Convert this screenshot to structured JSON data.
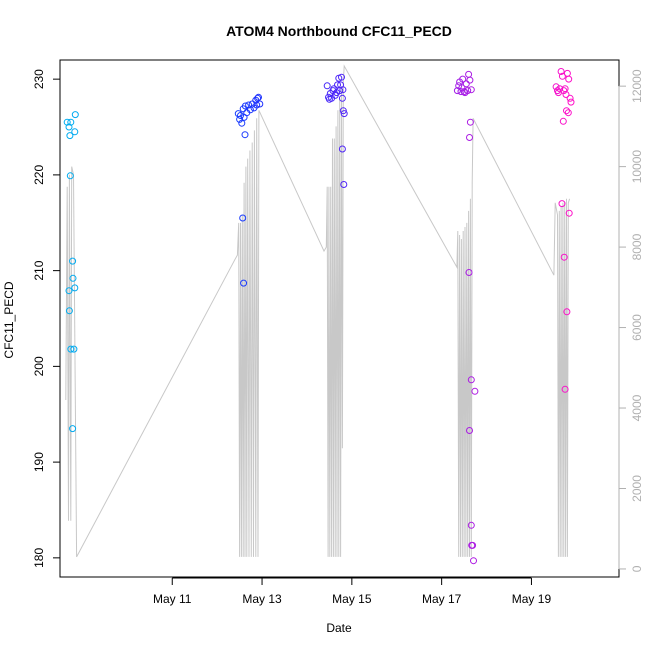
{
  "chart_data": {
    "type": "scatter",
    "title": "ATOM4 Northbound CFC11_PECD",
    "xlabel": "Date",
    "ylabel": "CFC11_PECD",
    "y2label": "",
    "x_unit": "day of May (decimal)",
    "xlim": [
      8.5,
      20.95
    ],
    "ylim": [
      178,
      232
    ],
    "y2lim": [
      -200,
      12650
    ],
    "x_ticks": [
      {
        "value": 11,
        "label": "May 11"
      },
      {
        "value": 13,
        "label": "May 13"
      },
      {
        "value": 15,
        "label": "May 15"
      },
      {
        "value": 17,
        "label": "May 17"
      },
      {
        "value": 19,
        "label": "May 19"
      }
    ],
    "y_ticks": [
      180,
      190,
      200,
      210,
      220,
      230
    ],
    "y2_ticks": [
      0,
      2000,
      4000,
      6000,
      8000,
      10000,
      12000
    ],
    "grid": false,
    "legend": "none",
    "colors": {
      "axis": "#000000",
      "secondary_axis": "#b0b0b0",
      "altitude_line": "#c8c8c8",
      "gradient_start": "#00aef0",
      "gradient_mid": "#1f2bff",
      "gradient_purple": "#8a22ef",
      "gradient_end": "#ff10c8"
    },
    "series": [
      {
        "axis": "left",
        "style": "open-circle",
        "points": [
          [
            8.66,
            225.5
          ],
          [
            8.7,
            225.0
          ],
          [
            8.72,
            224.1
          ],
          [
            8.74,
            225.5
          ],
          [
            8.83,
            224.5
          ],
          [
            8.84,
            226.3
          ],
          [
            8.73,
            219.9
          ],
          [
            8.78,
            211.0
          ],
          [
            8.79,
            209.2
          ],
          [
            8.7,
            207.9
          ],
          [
            8.83,
            208.2
          ],
          [
            8.71,
            205.8
          ],
          [
            8.74,
            201.8
          ],
          [
            8.81,
            201.8
          ],
          [
            8.78,
            193.5
          ],
          [
            12.47,
            226.4
          ],
          [
            12.5,
            225.8
          ],
          [
            12.52,
            226.2
          ],
          [
            12.55,
            225.4
          ],
          [
            12.58,
            226.9
          ],
          [
            12.6,
            226.0
          ],
          [
            12.63,
            227.2
          ],
          [
            12.66,
            226.5
          ],
          [
            12.7,
            227.3
          ],
          [
            12.74,
            226.8
          ],
          [
            12.78,
            227.4
          ],
          [
            12.82,
            227.0
          ],
          [
            12.86,
            227.8
          ],
          [
            12.88,
            227.3
          ],
          [
            12.9,
            228.0
          ],
          [
            12.92,
            228.1
          ],
          [
            12.95,
            227.4
          ],
          [
            12.62,
            224.2
          ],
          [
            12.57,
            215.5
          ],
          [
            12.59,
            208.7
          ],
          [
            14.45,
            229.3
          ],
          [
            14.48,
            228.1
          ],
          [
            14.5,
            227.9
          ],
          [
            14.52,
            228.5
          ],
          [
            14.55,
            228.0
          ],
          [
            14.58,
            228.8
          ],
          [
            14.6,
            229.0
          ],
          [
            14.63,
            228.3
          ],
          [
            14.66,
            228.6
          ],
          [
            14.68,
            229.4
          ],
          [
            14.71,
            230.1
          ],
          [
            14.73,
            228.8
          ],
          [
            14.75,
            229.4
          ],
          [
            14.77,
            230.2
          ],
          [
            14.79,
            228.0
          ],
          [
            14.8,
            228.9
          ],
          [
            14.81,
            226.7
          ],
          [
            14.83,
            226.4
          ],
          [
            14.79,
            222.7
          ],
          [
            14.82,
            219.0
          ],
          [
            17.35,
            228.8
          ],
          [
            17.38,
            229.3
          ],
          [
            17.4,
            229.7
          ],
          [
            17.43,
            228.7
          ],
          [
            17.45,
            229.1
          ],
          [
            17.47,
            230.0
          ],
          [
            17.5,
            228.7
          ],
          [
            17.52,
            228.6
          ],
          [
            17.55,
            229.5
          ],
          [
            17.58,
            228.8
          ],
          [
            17.6,
            230.5
          ],
          [
            17.63,
            229.9
          ],
          [
            17.66,
            228.9
          ],
          [
            17.64,
            225.5
          ],
          [
            17.62,
            223.9
          ],
          [
            17.61,
            209.8
          ],
          [
            17.66,
            198.6
          ],
          [
            17.74,
            197.4
          ],
          [
            17.62,
            193.3
          ],
          [
            17.66,
            183.4
          ],
          [
            17.67,
            181.3
          ],
          [
            17.69,
            181.3
          ],
          [
            17.71,
            179.7
          ],
          [
            19.55,
            229.2
          ],
          [
            19.58,
            228.8
          ],
          [
            19.6,
            228.6
          ],
          [
            19.63,
            229.0
          ],
          [
            19.66,
            230.8
          ],
          [
            19.69,
            230.3
          ],
          [
            19.72,
            228.8
          ],
          [
            19.75,
            229.0
          ],
          [
            19.77,
            228.4
          ],
          [
            19.8,
            230.6
          ],
          [
            19.83,
            230.0
          ],
          [
            19.86,
            228.0
          ],
          [
            19.88,
            227.6
          ],
          [
            19.78,
            226.7
          ],
          [
            19.82,
            226.5
          ],
          [
            19.71,
            225.6
          ],
          [
            19.68,
            217.0
          ],
          [
            19.84,
            216.0
          ],
          [
            19.73,
            211.4
          ],
          [
            19.79,
            205.7
          ],
          [
            19.75,
            197.6
          ]
        ]
      },
      {
        "axis": "right",
        "style": "line",
        "points": [
          [
            8.63,
            4200
          ],
          [
            8.66,
            9500
          ],
          [
            8.69,
            1200
          ],
          [
            8.71,
            9800
          ],
          [
            8.74,
            1200
          ],
          [
            8.76,
            10000
          ],
          [
            8.8,
            9800
          ],
          [
            8.87,
            300
          ],
          [
            12.4,
            7700
          ],
          [
            12.45,
            7800
          ],
          [
            12.48,
            8600
          ],
          [
            12.5,
            300
          ],
          [
            12.52,
            8600
          ],
          [
            12.54,
            300
          ],
          [
            12.56,
            8800
          ],
          [
            12.58,
            300
          ],
          [
            12.6,
            9600
          ],
          [
            12.62,
            300
          ],
          [
            12.64,
            10000
          ],
          [
            12.66,
            300
          ],
          [
            12.68,
            10200
          ],
          [
            12.71,
            300
          ],
          [
            12.73,
            10400
          ],
          [
            12.76,
            300
          ],
          [
            12.78,
            10600
          ],
          [
            12.81,
            300
          ],
          [
            12.83,
            10900
          ],
          [
            12.86,
            300
          ],
          [
            12.88,
            11200
          ],
          [
            12.91,
            300
          ],
          [
            12.93,
            11400
          ],
          [
            14.38,
            7900
          ],
          [
            14.43,
            8000
          ],
          [
            14.45,
            9500
          ],
          [
            14.47,
            300
          ],
          [
            14.49,
            9500
          ],
          [
            14.51,
            300
          ],
          [
            14.53,
            9500
          ],
          [
            14.55,
            300
          ],
          [
            14.57,
            10700
          ],
          [
            14.59,
            300
          ],
          [
            14.61,
            10700
          ],
          [
            14.63,
            300
          ],
          [
            14.65,
            11000
          ],
          [
            14.67,
            300
          ],
          [
            14.69,
            11400
          ],
          [
            14.71,
            300
          ],
          [
            14.73,
            11700
          ],
          [
            14.75,
            300
          ],
          [
            14.77,
            12000
          ],
          [
            14.79,
            3000
          ],
          [
            14.81,
            12100
          ],
          [
            14.83,
            12500
          ],
          [
            17.34,
            7500
          ],
          [
            17.36,
            8400
          ],
          [
            17.38,
            300
          ],
          [
            17.4,
            8300
          ],
          [
            17.42,
            300
          ],
          [
            17.44,
            8200
          ],
          [
            17.46,
            300
          ],
          [
            17.48,
            8400
          ],
          [
            17.5,
            300
          ],
          [
            17.52,
            8500
          ],
          [
            17.54,
            300
          ],
          [
            17.56,
            8600
          ],
          [
            17.58,
            300
          ],
          [
            17.6,
            8900
          ],
          [
            17.62,
            300
          ],
          [
            17.64,
            9200
          ],
          [
            17.66,
            300
          ],
          [
            17.68,
            9600
          ],
          [
            17.7,
            11200
          ],
          [
            19.5,
            7300
          ],
          [
            19.53,
            9100
          ],
          [
            19.58,
            8800
          ],
          [
            19.6,
            300
          ],
          [
            19.62,
            8900
          ],
          [
            19.64,
            300
          ],
          [
            19.66,
            9000
          ],
          [
            19.68,
            300
          ],
          [
            19.7,
            9100
          ],
          [
            19.72,
            300
          ],
          [
            19.74,
            9100
          ],
          [
            19.76,
            300
          ],
          [
            19.78,
            9200
          ],
          [
            19.8,
            300
          ],
          [
            19.82,
            9100
          ],
          [
            19.85,
            9200
          ]
        ]
      }
    ]
  }
}
